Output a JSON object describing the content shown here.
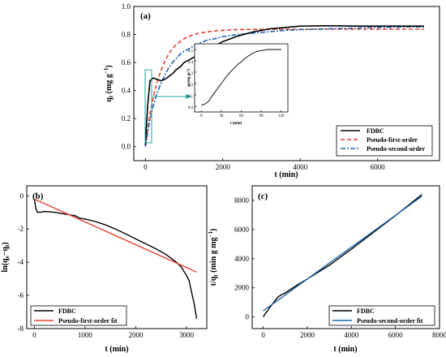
{
  "chart_data": [
    {
      "panel": "(a)",
      "type": "line",
      "xlabel": "t (min)",
      "ylabel": "q_t (mg g^-1)",
      "ylabel_display": {
        "main": "q",
        "sub": "t",
        "rest": " (mg g",
        "sup": "−1",
        "close": ")"
      },
      "xlim": [
        -300,
        7600
      ],
      "ylim": [
        -0.1,
        1.0
      ],
      "xticks": [
        0,
        2000,
        4000,
        6000
      ],
      "yticks": [
        0.0,
        0.2,
        0.4,
        0.6,
        0.8,
        1.0
      ],
      "legend_position": "bottom-right",
      "series": [
        {
          "name": "FDBC",
          "color": "#000000",
          "style": "solid",
          "x": [
            0,
            20,
            60,
            120,
            200,
            300,
            400,
            500,
            600,
            700,
            800,
            900,
            1000,
            1200,
            1400,
            1600,
            1800,
            2000,
            2200,
            2400,
            2600,
            2800,
            3000,
            3200,
            3600,
            4000,
            4500,
            5000,
            5500,
            6000,
            6500,
            7200
          ],
          "y": [
            0.01,
            0.12,
            0.3,
            0.47,
            0.49,
            0.48,
            0.47,
            0.48,
            0.5,
            0.52,
            0.55,
            0.57,
            0.6,
            0.63,
            0.66,
            0.69,
            0.72,
            0.75,
            0.77,
            0.79,
            0.805,
            0.82,
            0.83,
            0.84,
            0.85,
            0.86,
            0.862,
            0.862,
            0.86,
            0.86,
            0.86,
            0.86
          ]
        },
        {
          "name": "Pseudo-first-order",
          "color": "#e8412f",
          "style": "dashed",
          "x": [
            0,
            100,
            200,
            300,
            400,
            500,
            600,
            700,
            800,
            900,
            1000,
            1200,
            1400,
            1600,
            1800,
            2000,
            2200,
            2400,
            2600,
            2800,
            3000,
            3500,
            4000,
            5000,
            6000,
            7200
          ],
          "y": [
            0.0,
            0.21,
            0.35,
            0.46,
            0.54,
            0.61,
            0.66,
            0.7,
            0.73,
            0.75,
            0.77,
            0.795,
            0.81,
            0.82,
            0.826,
            0.83,
            0.833,
            0.835,
            0.836,
            0.837,
            0.837,
            0.838,
            0.838,
            0.838,
            0.838,
            0.838
          ]
        },
        {
          "name": "Pseudo-second-order",
          "color": "#2067b0",
          "style": "dashdot",
          "x": [
            0,
            100,
            200,
            300,
            400,
            500,
            600,
            700,
            800,
            900,
            1000,
            1200,
            1400,
            1600,
            1800,
            2000,
            2400,
            2800,
            3200,
            3600,
            4000,
            5000,
            6000,
            7200
          ],
          "y": [
            0.0,
            0.17,
            0.29,
            0.38,
            0.45,
            0.51,
            0.56,
            0.6,
            0.63,
            0.66,
            0.68,
            0.71,
            0.74,
            0.76,
            0.77,
            0.785,
            0.8,
            0.81,
            0.82,
            0.83,
            0.835,
            0.843,
            0.85,
            0.855
          ]
        }
      ],
      "inset": {
        "xlabel": "t (min)",
        "ylabel": "q_t (mg g^-1)",
        "ylabel_display": "q (mg g⁻¹)",
        "xlim": [
          -10,
          130
        ],
        "ylim": [
          -0.05,
          0.55
        ],
        "xticks": [
          0,
          30,
          60,
          90,
          120
        ],
        "yticks": [
          0.0,
          0.1,
          0.2,
          0.3,
          0.4,
          0.5
        ],
        "series": [
          {
            "name": "FDBC",
            "color": "#000000",
            "x": [
              0,
              2,
              4,
              6,
              8,
              10,
              12,
              15,
              20,
              25,
              30,
              35,
              40,
              45,
              50,
              55,
              60,
              65,
              70,
              75,
              80,
              85,
              90,
              95,
              100,
              110,
              120
            ],
            "y": [
              0.01,
              0.01,
              0.02,
              0.02,
              0.03,
              0.04,
              0.05,
              0.08,
              0.12,
              0.16,
              0.2,
              0.24,
              0.28,
              0.31,
              0.34,
              0.37,
              0.39,
              0.42,
              0.44,
              0.46,
              0.475,
              0.485,
              0.49,
              0.495,
              0.5,
              0.5,
              0.5
            ]
          }
        ]
      }
    },
    {
      "panel": "(b)",
      "type": "line",
      "xlabel": "t (min)",
      "ylabel": "ln(q_e−q_t)",
      "ylabel_display": {
        "pre": "ln(q",
        "sub1": "e",
        "mid": "−q",
        "sub2": "t",
        "close": ")"
      },
      "xlim": [
        -150,
        3400
      ],
      "ylim": [
        -8,
        0.6
      ],
      "xticks": [
        0,
        1000,
        2000,
        3000
      ],
      "yticks": [
        0,
        -2,
        -4,
        -6,
        -8
      ],
      "legend_position": "bottom-left",
      "series": [
        {
          "name": "FDBC",
          "color": "#000000",
          "style": "solid",
          "x": [
            0,
            30,
            60,
            100,
            200,
            300,
            400,
            500,
            600,
            700,
            800,
            900,
            1000,
            1200,
            1400,
            1600,
            1800,
            2000,
            2200,
            2400,
            2600,
            2800,
            2900,
            3000,
            3050,
            3100,
            3150,
            3200
          ],
          "y": [
            -0.2,
            -0.8,
            -1.0,
            -1.0,
            -0.95,
            -0.97,
            -1.0,
            -1.05,
            -1.1,
            -1.15,
            -1.2,
            -1.35,
            -1.4,
            -1.55,
            -1.75,
            -2.0,
            -2.3,
            -2.6,
            -2.9,
            -3.2,
            -3.55,
            -4.0,
            -4.3,
            -4.8,
            -5.1,
            -5.8,
            -6.5,
            -7.4
          ]
        },
        {
          "name": "Pseudo-first-order fit",
          "color": "#e8412f",
          "style": "solid",
          "x": [
            0,
            3200
          ],
          "y": [
            -0.2,
            -4.6
          ]
        }
      ]
    },
    {
      "panel": "(c)",
      "type": "line",
      "xlabel": "t (min)",
      "ylabel": "t/q_t (min g mg^-1)",
      "ylabel_display": {
        "pre": "t/q",
        "sub": "t",
        "rest": " (min g mg",
        "sup": "−1",
        "close": ")"
      },
      "xlim": [
        -500,
        8000
      ],
      "ylim": [
        -800,
        9000
      ],
      "xticks": [
        0,
        2000,
        4000,
        6000,
        8000
      ],
      "yticks": [
        0,
        2000,
        4000,
        6000,
        8000
      ],
      "legend_position": "bottom-right",
      "series": [
        {
          "name": "FDBC",
          "color": "#000000",
          "style": "solid",
          "x": [
            0,
            100,
            200,
            300,
            400,
            500,
            600,
            700,
            800,
            900,
            1000,
            1500,
            2000,
            3000,
            4000,
            5000,
            6000,
            7200
          ],
          "y": [
            0,
            250,
            420,
            640,
            850,
            1050,
            1250,
            1400,
            1500,
            1580,
            1650,
            2150,
            2600,
            3550,
            4650,
            5800,
            6950,
            8400
          ]
        },
        {
          "name": "Pseudo-second-order fit",
          "color": "#2067b0",
          "style": "solid",
          "x": [
            0,
            7200
          ],
          "y": [
            420,
            8280
          ]
        }
      ]
    }
  ]
}
